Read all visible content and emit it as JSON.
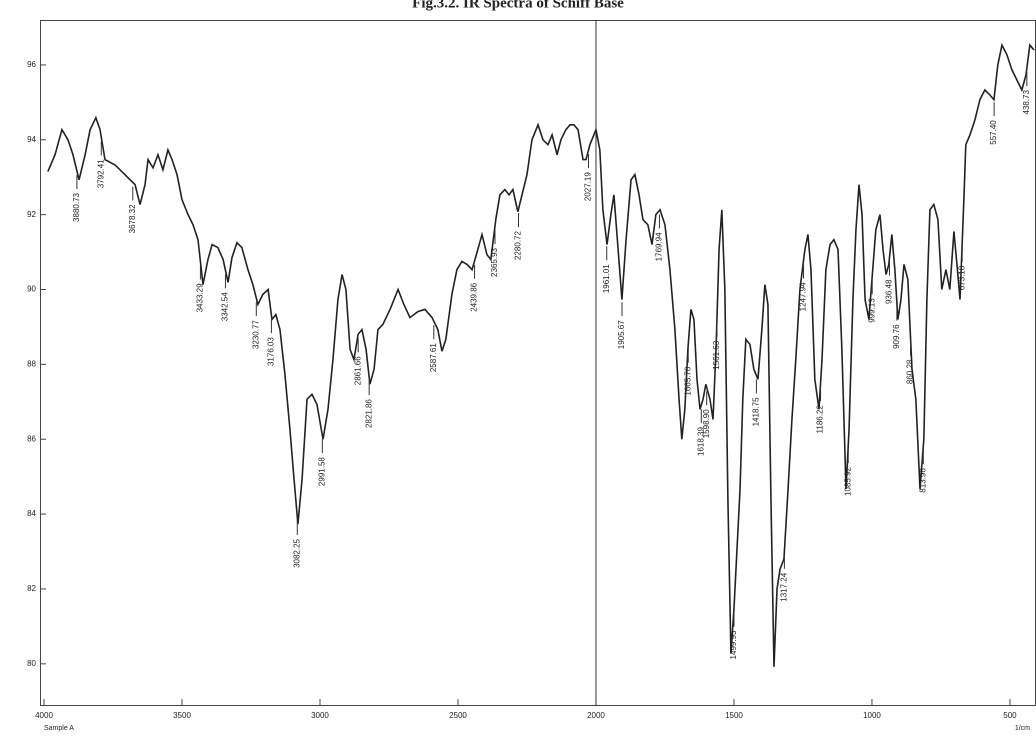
{
  "chart_data": {
    "type": "line",
    "title": "Fig.3.2. IR Spectra of Schiff Base",
    "sample": "Sample A",
    "x_label": "1/cm",
    "color": "#222222",
    "xlim": [
      4000,
      410
    ],
    "ylim": [
      78.9,
      97.2
    ],
    "xticks": [
      4000,
      3500,
      3000,
      2500,
      2000,
      1500,
      1000,
      500
    ],
    "yticks": [
      80,
      82,
      84,
      86,
      88,
      90,
      92,
      94,
      96
    ],
    "marker_line": 2000,
    "x": [
      3986,
      3960,
      3935,
      3913,
      3895,
      3873,
      3851,
      3833,
      3812,
      3797,
      3779,
      3743,
      3707,
      3670,
      3652,
      3634,
      3623,
      3605,
      3587,
      3569,
      3551,
      3536,
      3518,
      3500,
      3478,
      3460,
      3442,
      3424,
      3406,
      3391,
      3370,
      3351,
      3333,
      3319,
      3301,
      3283,
      3261,
      3243,
      3225,
      3207,
      3188,
      3174,
      3160,
      3145,
      3127,
      3109,
      3094,
      3080,
      3065,
      3047,
      3029,
      3011,
      2989,
      2971,
      2953,
      2935,
      2920,
      2906,
      2891,
      2877,
      2862,
      2848,
      2833,
      2819,
      2804,
      2790,
      2772,
      2746,
      2717,
      2696,
      2674,
      2645,
      2620,
      2594,
      2573,
      2558,
      2544,
      2522,
      2504,
      2486,
      2467,
      2449,
      2428,
      2413,
      2395,
      2381,
      2363,
      2348,
      2330,
      2315,
      2301,
      2283,
      2268,
      2250,
      2232,
      2210,
      2192,
      2174,
      2159,
      2141,
      2127,
      2109,
      2094,
      2080,
      2065,
      2047,
      2036,
      2022,
      2000,
      1986,
      1975,
      1960,
      1946,
      1935,
      1917,
      1906,
      1891,
      1873,
      1859,
      1844,
      1830,
      1812,
      1797,
      1783,
      1768,
      1750,
      1732,
      1714,
      1699,
      1689,
      1678,
      1667,
      1656,
      1645,
      1634,
      1623,
      1612,
      1602,
      1587,
      1576,
      1565,
      1554,
      1544,
      1533,
      1522,
      1511,
      1500,
      1489,
      1478,
      1468,
      1457,
      1442,
      1428,
      1413,
      1399,
      1388,
      1377,
      1366,
      1355,
      1344,
      1333,
      1319,
      1304,
      1290,
      1276,
      1261,
      1243,
      1232,
      1221,
      1207,
      1192,
      1181,
      1167,
      1152,
      1138,
      1123,
      1109,
      1094,
      1083,
      1069,
      1058,
      1047,
      1036,
      1025,
      1011,
      1000,
      986,
      971,
      960,
      949,
      939,
      928,
      917,
      906,
      895,
      884,
      870,
      855,
      841,
      826,
      812,
      801,
      790,
      776,
      761,
      747,
      732,
      718,
      703,
      692,
      681,
      667,
      660,
      645,
      627,
      609,
      591,
      573,
      558,
      544,
      529,
      511,
      493,
      475,
      457,
      442,
      428,
      413
    ],
    "values": [
      93.15,
      93.6,
      94.27,
      94.0,
      93.6,
      92.93,
      93.6,
      94.27,
      94.59,
      94.27,
      93.47,
      93.33,
      93.07,
      92.8,
      92.27,
      92.8,
      93.47,
      93.25,
      93.6,
      93.2,
      93.73,
      93.47,
      93.07,
      92.4,
      92.0,
      91.73,
      91.33,
      90.13,
      90.8,
      91.2,
      91.12,
      90.8,
      90.19,
      90.85,
      91.25,
      91.12,
      90.53,
      90.13,
      89.6,
      89.87,
      90.0,
      89.2,
      89.33,
      88.93,
      87.73,
      86.27,
      84.93,
      83.73,
      84.93,
      87.07,
      87.2,
      86.93,
      86.0,
      86.8,
      88.13,
      89.73,
      90.4,
      90.0,
      88.4,
      88.13,
      88.8,
      88.93,
      88.4,
      87.47,
      87.87,
      88.93,
      89.07,
      89.47,
      90.0,
      89.6,
      89.25,
      89.41,
      89.47,
      89.25,
      88.93,
      88.35,
      88.67,
      89.87,
      90.53,
      90.75,
      90.67,
      90.53,
      91.07,
      91.47,
      90.93,
      90.8,
      91.87,
      92.53,
      92.67,
      92.53,
      92.67,
      92.08,
      92.53,
      93.07,
      94.0,
      94.4,
      94.0,
      93.87,
      94.13,
      93.6,
      94.0,
      94.27,
      94.4,
      94.4,
      94.27,
      93.47,
      93.47,
      93.87,
      94.27,
      93.73,
      92.13,
      91.2,
      92.0,
      92.53,
      90.8,
      89.73,
      91.33,
      92.93,
      93.07,
      92.53,
      91.87,
      91.73,
      91.2,
      92.0,
      92.13,
      91.73,
      90.53,
      88.93,
      87.07,
      86.0,
      86.8,
      88.4,
      89.47,
      89.2,
      87.6,
      86.8,
      87.07,
      87.47,
      87.07,
      86.53,
      88.4,
      91.07,
      92.13,
      90.0,
      84.4,
      80.27,
      81.47,
      83.07,
      84.67,
      87.07,
      88.67,
      88.53,
      87.87,
      87.6,
      88.93,
      90.13,
      89.6,
      84.4,
      79.92,
      82.0,
      82.53,
      82.8,
      84.67,
      86.53,
      88.13,
      90.0,
      91.07,
      91.47,
      90.53,
      87.6,
      86.8,
      88.13,
      90.53,
      91.2,
      91.33,
      91.07,
      88.4,
      84.67,
      86.27,
      89.73,
      91.6,
      92.8,
      92.0,
      89.73,
      89.2,
      90.27,
      91.6,
      92.0,
      91.07,
      90.4,
      90.67,
      91.47,
      90.53,
      89.2,
      89.73,
      90.67,
      90.27,
      87.87,
      87.07,
      84.67,
      86.0,
      89.73,
      92.13,
      92.27,
      91.87,
      90.0,
      90.53,
      90.0,
      91.55,
      90.67,
      89.73,
      92.4,
      93.87,
      94.13,
      94.53,
      95.07,
      95.33,
      95.2,
      95.07,
      96.0,
      96.53,
      96.27,
      95.87,
      95.6,
      95.33,
      95.73,
      96.53,
      96.4
    ],
    "peaks": [
      3880.73,
      3792.41,
      3678.32,
      3433.29,
      3342.54,
      3230.77,
      3176.03,
      3082.25,
      2991.58,
      2861.66,
      2821.86,
      2587.61,
      2439.86,
      2365.93,
      2280.72,
      2027.19,
      1961.01,
      1905.67,
      1769.94,
      {
        "value": 1665.7,
        "label": "1665.70"
      },
      1618.39,
      {
        "value": 1598.9,
        "label": "1598.90"
      },
      1561.63,
      1499.95,
      1418.75,
      1317.24,
      1247.94,
      1186.22,
      1085.92,
      999.13,
      936.48,
      909.76,
      860.28,
      813.96,
      673.18,
      {
        "value": 557.4,
        "label": "557.40"
      },
      438.73
    ]
  }
}
